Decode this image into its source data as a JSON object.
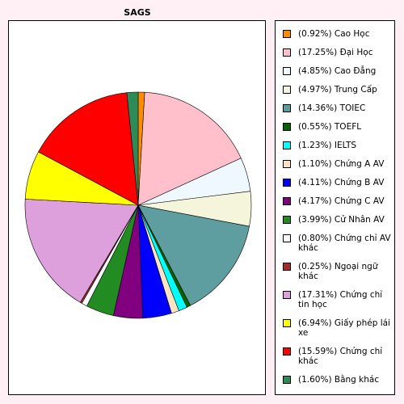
{
  "chart_data": {
    "type": "pie",
    "title": "SAGS",
    "legend_position": "right",
    "start_angle_deg": 0,
    "direction": "clockwise",
    "slices": [
      {
        "label": "(0.92%) Cao Học",
        "value": 0.92,
        "color": "#ff8c00"
      },
      {
        "label": "(17.25%) Đại Học",
        "value": 17.25,
        "color": "#ffc0cb"
      },
      {
        "label": "(4.85%) Cao Đẳng",
        "value": 4.85,
        "color": "#f0f8ff"
      },
      {
        "label": "(4.97%) Trung Cấp",
        "value": 4.97,
        "color": "#f5f5dc"
      },
      {
        "label": "(14.36%) TOIEC",
        "value": 14.36,
        "color": "#5f9ea0"
      },
      {
        "label": "(0.55%) TOEFL",
        "value": 0.55,
        "color": "#006400"
      },
      {
        "label": "(1.23%) IELTS",
        "value": 1.23,
        "color": "#00ffff"
      },
      {
        "label": "(1.10%) Chứng A AV",
        "value": 1.1,
        "color": "#ffe4c4"
      },
      {
        "label": "(4.11%) Chứng B AV",
        "value": 4.11,
        "color": "#0000ff"
      },
      {
        "label": "(4.17%) Chứng C AV",
        "value": 4.17,
        "color": "#800080"
      },
      {
        "label": "(3.99%) Cử Nhân AV",
        "value": 3.99,
        "color": "#228b22"
      },
      {
        "label": "(0.80%) Chứng chỉ AV khác",
        "value": 0.8,
        "color": "#f8f8ff"
      },
      {
        "label": "(0.25%) Ngoại ngữ khác",
        "value": 0.25,
        "color": "#a52a2a"
      },
      {
        "label": "(17.31%) Chứng chỉ tin học",
        "value": 17.31,
        "color": "#dda0dd"
      },
      {
        "label": "(6.94%) Giấy phép lái xe",
        "value": 6.94,
        "color": "#ffff00"
      },
      {
        "label": "(15.59%) Chứng chỉ khác",
        "value": 15.59,
        "color": "#ff0000"
      },
      {
        "label": "(1.60%) Bằng khác",
        "value": 1.6,
        "color": "#2e8b57"
      }
    ]
  }
}
